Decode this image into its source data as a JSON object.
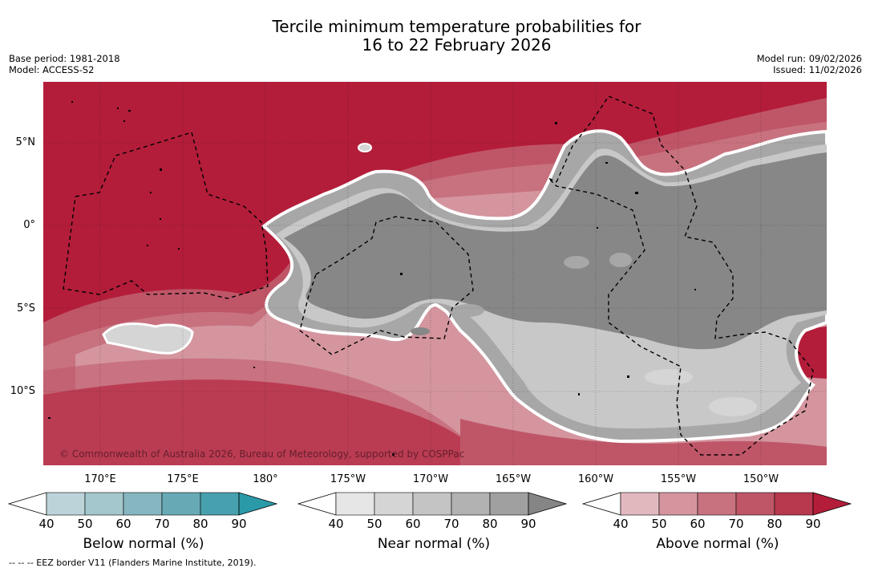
{
  "title": {
    "line1": "Tercile minimum temperature probabilities for",
    "line2": "16 to 22 February 2026"
  },
  "meta_left": {
    "base_period": "Base period: 1981-2018",
    "model": "Model: ACCESS-S2"
  },
  "meta_right": {
    "model_run": "Model run: 09/02/2026",
    "issued": "Issued: 11/02/2026"
  },
  "map": {
    "lat_labels": [
      "5°N",
      "0°",
      "5°S",
      "10°S"
    ],
    "lon_labels": [
      "170°E",
      "175°E",
      "180°",
      "175°W",
      "170°W",
      "165°W",
      "160°W",
      "155°W",
      "150°W"
    ],
    "copyright": "© Commonwealth of Australia 2026, Bureau of Meteorology, supported by COSPPac",
    "colors": {
      "above_dominant": "#b31d3a",
      "near_dominant": "#878787",
      "near_mid": "#a7a7a7",
      "near_light": "#c8c8c8"
    }
  },
  "colorbars": [
    {
      "title": "Below normal (%)",
      "ticks": [
        "40",
        "50",
        "60",
        "70",
        "80",
        "90"
      ],
      "colors": [
        "#ffffff",
        "#bcd3da",
        "#a4c7cd",
        "#86b7c0",
        "#67aab6",
        "#47a0ad",
        "#2a9aa9"
      ]
    },
    {
      "title": "Near normal (%)",
      "ticks": [
        "40",
        "50",
        "60",
        "70",
        "80",
        "90"
      ],
      "colors": [
        "#ffffff",
        "#e6e6e6",
        "#d5d5d5",
        "#c4c4c4",
        "#b2b2b2",
        "#a0a0a0",
        "#858585"
      ]
    },
    {
      "title": "Above normal (%)",
      "ticks": [
        "40",
        "50",
        "60",
        "70",
        "80",
        "90"
      ],
      "colors": [
        "#ffffff",
        "#e2b8bf",
        "#d4959f",
        "#c8727f",
        "#bf5668",
        "#b8384d",
        "#b31d3a"
      ]
    }
  ],
  "footer": "--  --  -- EEZ border V11 (Flanders Marine Institute, 2019)."
}
